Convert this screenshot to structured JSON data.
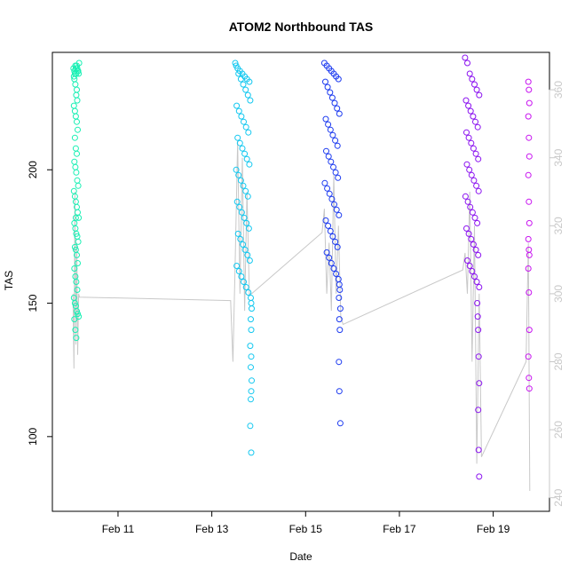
{
  "chart_data": {
    "type": "scatter",
    "title": "ATOM2 Northbound TAS",
    "xlabel": "Date",
    "ylabel": "TAS",
    "x_axis": {
      "unit": "day of Feb",
      "range": [
        9.6,
        20.2
      ],
      "ticks": [
        11,
        13,
        15,
        17,
        19
      ],
      "tick_labels": [
        "Feb 11",
        "Feb 13",
        "Feb 15",
        "Feb 17",
        "Feb 19"
      ]
    },
    "y_axis_left": {
      "range": [
        72,
        244
      ],
      "ticks": [
        100,
        150,
        200
      ],
      "tick_labels": [
        "100",
        "150",
        "200"
      ]
    },
    "y_axis_right": {
      "range": [
        236,
        371
      ],
      "ticks": [
        240,
        260,
        280,
        300,
        320,
        340,
        360
      ],
      "tick_labels": [
        "240",
        "260",
        "280",
        "300",
        "320",
        "340",
        "360"
      ],
      "color": "#c8c8c8"
    },
    "grid": false,
    "marker": "open-circle",
    "series": [
      {
        "color": "#19f0b4",
        "x": [
          10.05,
          10.07,
          10.09,
          10.11,
          10.13,
          10.15,
          10.17,
          10.06,
          10.08,
          10.1,
          10.12,
          10.14,
          10.16,
          10.07,
          10.09,
          10.11,
          10.13,
          10.06,
          10.08,
          10.1,
          10.12,
          10.14,
          10.08,
          10.1,
          10.12,
          10.07,
          10.09,
          10.11,
          10.13,
          10.15,
          10.06,
          10.08,
          10.1,
          10.12,
          10.14,
          10.16,
          10.07,
          10.09,
          10.11,
          10.13,
          10.15,
          10.08,
          10.1,
          10.12,
          10.14,
          10.07,
          10.09,
          10.11,
          10.13,
          10.06,
          10.08,
          10.1,
          10.12,
          10.14,
          10.16,
          10.07,
          10.09,
          10.11,
          10.1,
          10.12
        ],
        "y": [
          238,
          237,
          239,
          236,
          238,
          237,
          240,
          235,
          236,
          238,
          239,
          237,
          236,
          234,
          232,
          228,
          226,
          224,
          222,
          220,
          218,
          215,
          212,
          208,
          206,
          203,
          201,
          199,
          196,
          194,
          192,
          190,
          188,
          186,
          184,
          182,
          180,
          178,
          176,
          175,
          173,
          171,
          170,
          168,
          165,
          163,
          160,
          158,
          155,
          152,
          150,
          149,
          147,
          146,
          145,
          144,
          140,
          137,
          182,
          230
        ]
      },
      {
        "color": "#14c8f0",
        "x": [
          13.5,
          13.55,
          13.6,
          13.65,
          13.7,
          13.75,
          13.8,
          13.52,
          13.57,
          13.62,
          13.67,
          13.72,
          13.77,
          13.82,
          13.53,
          13.58,
          13.63,
          13.68,
          13.73,
          13.78,
          13.55,
          13.6,
          13.65,
          13.7,
          13.75,
          13.8,
          13.52,
          13.57,
          13.62,
          13.67,
          13.72,
          13.77,
          13.54,
          13.59,
          13.64,
          13.69,
          13.74,
          13.79,
          13.56,
          13.61,
          13.66,
          13.71,
          13.76,
          13.81,
          13.53,
          13.58,
          13.63,
          13.68,
          13.73,
          13.78,
          13.83,
          13.84,
          13.85,
          13.83,
          13.84,
          13.82,
          13.84,
          13.83,
          13.85,
          13.84,
          13.83,
          13.82,
          13.84
        ],
        "y": [
          240,
          238,
          237,
          236,
          235,
          234,
          233,
          239,
          236,
          234,
          232,
          230,
          228,
          226,
          224,
          222,
          220,
          218,
          216,
          214,
          212,
          210,
          208,
          206,
          204,
          202,
          200,
          198,
          196,
          194,
          192,
          190,
          188,
          186,
          184,
          182,
          180,
          178,
          176,
          174,
          172,
          170,
          168,
          166,
          164,
          162,
          160,
          158,
          156,
          154,
          152,
          150,
          148,
          144,
          140,
          134,
          130,
          126,
          121,
          117,
          114,
          104,
          94
        ]
      },
      {
        "color": "#1e3cf0",
        "x": [
          15.4,
          15.45,
          15.5,
          15.55,
          15.6,
          15.65,
          15.7,
          15.42,
          15.47,
          15.52,
          15.57,
          15.62,
          15.67,
          15.72,
          15.43,
          15.48,
          15.53,
          15.58,
          15.63,
          15.68,
          15.44,
          15.49,
          15.54,
          15.59,
          15.64,
          15.69,
          15.41,
          15.46,
          15.51,
          15.56,
          15.61,
          15.66,
          15.71,
          15.43,
          15.48,
          15.53,
          15.58,
          15.63,
          15.68,
          15.45,
          15.5,
          15.55,
          15.6,
          15.65,
          15.7,
          15.72,
          15.73,
          15.71,
          15.74,
          15.72,
          15.73,
          15.71,
          15.72,
          15.74
        ],
        "y": [
          240,
          239,
          238,
          237,
          236,
          235,
          234,
          233,
          231,
          229,
          227,
          225,
          223,
          221,
          219,
          217,
          215,
          213,
          211,
          209,
          207,
          205,
          203,
          201,
          199,
          197,
          195,
          193,
          191,
          189,
          187,
          185,
          183,
          181,
          179,
          177,
          175,
          173,
          171,
          169,
          167,
          165,
          163,
          161,
          159,
          157,
          155,
          152,
          148,
          144,
          140,
          128,
          117,
          105
        ]
      },
      {
        "color": "#8c14f0",
        "x": [
          18.4,
          18.45,
          18.5,
          18.55,
          18.6,
          18.65,
          18.7,
          18.42,
          18.47,
          18.52,
          18.57,
          18.62,
          18.67,
          18.43,
          18.48,
          18.53,
          18.58,
          18.63,
          18.68,
          18.44,
          18.49,
          18.54,
          18.59,
          18.64,
          18.69,
          18.41,
          18.46,
          18.51,
          18.56,
          18.61,
          18.66,
          18.43,
          18.48,
          18.53,
          18.58,
          18.63,
          18.68,
          18.45,
          18.5,
          18.55,
          18.6,
          18.65,
          18.7,
          18.66,
          18.67,
          18.68,
          18.69,
          18.7,
          18.68,
          18.69,
          18.7
        ],
        "y": [
          242,
          240,
          236,
          234,
          232,
          230,
          228,
          226,
          224,
          222,
          220,
          218,
          216,
          214,
          212,
          210,
          208,
          206,
          204,
          202,
          200,
          198,
          196,
          194,
          192,
          190,
          188,
          186,
          184,
          182,
          180,
          178,
          176,
          174,
          172,
          170,
          168,
          166,
          164,
          162,
          160,
          158,
          156,
          150,
          145,
          140,
          130,
          120,
          110,
          95,
          85
        ]
      },
      {
        "color": "#c814f0",
        "x": [
          19.75,
          19.76,
          19.77,
          19.75,
          19.76,
          19.77,
          19.75,
          19.76,
          19.77,
          19.75,
          19.76,
          19.77,
          19.75,
          19.76,
          19.77,
          19.75,
          19.76,
          19.77
        ],
        "y": [
          233,
          230,
          225,
          220,
          212,
          205,
          198,
          188,
          180,
          174,
          170,
          168,
          163,
          154,
          140,
          130,
          122,
          118
        ]
      }
    ],
    "line": {
      "color": "#c8c8c8",
      "axis": "right",
      "x": [
        10.04,
        10.06,
        10.08,
        10.1,
        10.12,
        10.14,
        10.16,
        10.18,
        13.4,
        13.45,
        13.5,
        13.55,
        13.6,
        13.65,
        13.7,
        13.75,
        13.8,
        13.85,
        15.35,
        15.4,
        15.45,
        15.5,
        15.55,
        15.6,
        15.65,
        15.7,
        15.75,
        15.8,
        18.35,
        18.4,
        18.45,
        18.5,
        18.55,
        18.6,
        18.65,
        18.7,
        18.75,
        19.7,
        19.75,
        19.78
      ],
      "y": [
        300,
        278,
        330,
        285,
        315,
        282,
        300,
        299,
        298,
        280,
        310,
        345,
        300,
        340,
        295,
        330,
        300,
        300,
        318,
        325,
        300,
        315,
        295,
        335,
        300,
        320,
        293,
        291,
        307,
        312,
        300,
        330,
        280,
        320,
        250,
        300,
        252,
        280,
        315,
        242
      ]
    }
  }
}
